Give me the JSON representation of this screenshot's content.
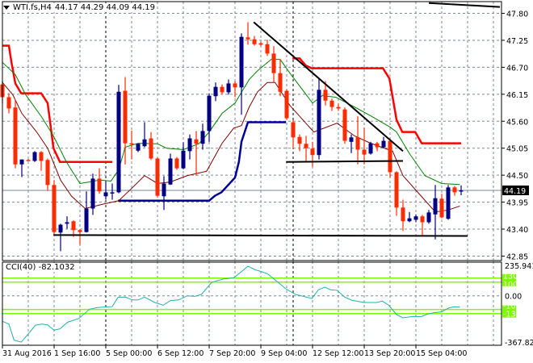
{
  "header": {
    "symbol": "WTI.fs,H4",
    "ohlc": "44.17 44.29 44.09 44.19"
  },
  "indicator": {
    "label": "CCI(40) -82.1032"
  },
  "chart_data": [
    {
      "type": "candlestick",
      "title": "WTI.fs,H4",
      "ohlc_fields": [
        "open",
        "high",
        "low",
        "close"
      ],
      "ylim": [
        42.85,
        47.8
      ],
      "y_ticks": [
        "47.80",
        "47.25",
        "46.70",
        "46.15",
        "45.60",
        "45.05",
        "44.50",
        "43.95",
        "43.40",
        "42.85"
      ],
      "current_price": "44.19",
      "x_labels": [
        {
          "index": 0,
          "label": "31 Aug 2016"
        },
        {
          "index": 8,
          "label": "1 Sep 16:00"
        },
        {
          "index": 16,
          "label": "5 Sep 00:00"
        },
        {
          "index": 24,
          "label": "6 Sep 12:00"
        },
        {
          "index": 32,
          "label": "7 Sep 20:00"
        },
        {
          "index": 40,
          "label": "9 Sep 04:00"
        },
        {
          "index": 48,
          "label": "12 Sep 12:00"
        },
        {
          "index": 56,
          "label": "13 Sep 20:00"
        },
        {
          "index": 64,
          "label": "15 Sep 04:00"
        }
      ],
      "period_separators": [
        16,
        45
      ],
      "grid": true,
      "colors": {
        "bull": "#000080",
        "bear": "#ff2a00",
        "ma_fast": "#008000",
        "ma_slow": "#800000",
        "stop_upper": "#ff0000",
        "stop_lower": "#000099",
        "trendline": "#000000",
        "grid": "#7f8a99"
      },
      "candles": [
        [
          46.35,
          46.42,
          45.97,
          46.09
        ],
        [
          46.09,
          46.17,
          45.76,
          45.86
        ],
        [
          45.88,
          46.04,
          44.64,
          44.72
        ],
        [
          44.72,
          44.82,
          44.46,
          44.82
        ],
        [
          44.81,
          44.83,
          44.79,
          44.8
        ],
        [
          44.79,
          44.99,
          44.77,
          44.97
        ],
        [
          44.97,
          44.99,
          44.59,
          44.79
        ],
        [
          44.81,
          44.84,
          44.18,
          44.3
        ],
        [
          44.3,
          44.4,
          43.27,
          43.34
        ],
        [
          43.33,
          43.51,
          42.95,
          43.49
        ],
        [
          43.51,
          43.66,
          43.41,
          43.54
        ],
        [
          43.56,
          43.58,
          43.24,
          43.38
        ],
        [
          43.38,
          43.4,
          43.08,
          43.34
        ],
        [
          43.34,
          44.17,
          43.33,
          43.82
        ],
        [
          43.82,
          44.53,
          43.69,
          44.43
        ],
        [
          44.43,
          44.64,
          44.12,
          44.17
        ],
        [
          44.07,
          44.38,
          44.0,
          44.15
        ],
        [
          44.13,
          44.33,
          44.0,
          44.15
        ],
        [
          44.15,
          46.34,
          44.13,
          46.2
        ],
        [
          46.22,
          46.5,
          44.72,
          45.15
        ],
        [
          45.15,
          45.41,
          44.82,
          45.13
        ],
        [
          45.0,
          45.14,
          44.97,
          45.14
        ],
        [
          45.09,
          45.58,
          45.07,
          45.23
        ],
        [
          45.25,
          45.38,
          44.81,
          44.84
        ],
        [
          44.84,
          44.86,
          44.05,
          44.08
        ],
        [
          44.07,
          44.48,
          43.79,
          44.33
        ],
        [
          44.31,
          44.94,
          44.3,
          44.84
        ],
        [
          44.84,
          44.87,
          44.61,
          44.64
        ],
        [
          44.64,
          45.17,
          44.62,
          45.0
        ],
        [
          44.99,
          45.33,
          44.82,
          45.25
        ],
        [
          45.23,
          45.4,
          44.49,
          45.14
        ],
        [
          45.14,
          45.55,
          45.02,
          45.4
        ],
        [
          45.4,
          46.17,
          45.18,
          46.12
        ],
        [
          46.11,
          46.39,
          46.01,
          46.3
        ],
        [
          46.3,
          46.35,
          46.14,
          46.19
        ],
        [
          46.19,
          46.45,
          46.14,
          46.37
        ],
        [
          46.37,
          46.42,
          46.09,
          46.29
        ],
        [
          46.29,
          47.39,
          45.73,
          47.32
        ],
        [
          47.31,
          47.62,
          47.16,
          47.27
        ],
        [
          47.27,
          47.34,
          47.14,
          47.17
        ],
        [
          47.19,
          47.22,
          47.13,
          47.16
        ],
        [
          47.17,
          47.26,
          46.93,
          46.98
        ],
        [
          46.98,
          47.13,
          46.39,
          46.58
        ],
        [
          46.58,
          46.86,
          46.11,
          46.2
        ],
        [
          46.22,
          46.25,
          45.63,
          45.66
        ],
        [
          45.58,
          45.62,
          45.05,
          45.27
        ],
        [
          45.28,
          45.33,
          44.99,
          45.14
        ],
        [
          45.14,
          45.3,
          44.79,
          45.05
        ],
        [
          45.04,
          45.18,
          44.67,
          44.91
        ],
        [
          44.91,
          46.48,
          44.82,
          46.24
        ],
        [
          46.24,
          46.42,
          45.92,
          46.02
        ],
        [
          46.02,
          46.06,
          45.81,
          45.89
        ],
        [
          45.89,
          45.96,
          45.81,
          45.86
        ],
        [
          45.84,
          45.88,
          45.14,
          45.2
        ],
        [
          45.18,
          45.33,
          44.95,
          45.27
        ],
        [
          45.27,
          45.7,
          44.72,
          45.02
        ],
        [
          45.02,
          45.47,
          44.72,
          44.92
        ],
        [
          44.94,
          45.18,
          44.92,
          45.15
        ],
        [
          45.15,
          45.18,
          44.99,
          45.07
        ],
        [
          45.07,
          45.28,
          45.05,
          45.2
        ],
        [
          45.2,
          45.25,
          44.45,
          44.56
        ],
        [
          44.56,
          44.58,
          43.67,
          43.84
        ],
        [
          43.84,
          44.0,
          43.36,
          43.56
        ],
        [
          43.56,
          43.75,
          43.54,
          43.62
        ],
        [
          43.59,
          43.7,
          43.54,
          43.66
        ],
        [
          43.66,
          43.69,
          43.26,
          43.54
        ],
        [
          43.54,
          43.79,
          43.51,
          43.74
        ],
        [
          43.7,
          44.3,
          43.19,
          44.03
        ],
        [
          44.02,
          44.12,
          43.62,
          43.64
        ],
        [
          43.61,
          44.3,
          43.59,
          44.25
        ],
        [
          44.25,
          44.28,
          44.08,
          44.15
        ],
        [
          44.17,
          44.29,
          44.09,
          44.19
        ]
      ],
      "ma_fast": [
        [
          0,
          46.8
        ],
        [
          2,
          46.55
        ],
        [
          3.6,
          46.14
        ],
        [
          6.1,
          45.68
        ],
        [
          7.9,
          45.3
        ],
        [
          9.9,
          44.77
        ],
        [
          12,
          44.33
        ],
        [
          13.4,
          44.36
        ],
        [
          15,
          44.4
        ],
        [
          16.8,
          44.38
        ],
        [
          18,
          44.61
        ],
        [
          19,
          45.07
        ],
        [
          21,
          45.15
        ],
        [
          24,
          45.14
        ],
        [
          25.4,
          45.05
        ],
        [
          28,
          45.02
        ],
        [
          30.4,
          45.14
        ],
        [
          32,
          45.38
        ],
        [
          34,
          45.76
        ],
        [
          36,
          45.97
        ],
        [
          38.2,
          46.45
        ],
        [
          39.5,
          46.63
        ],
        [
          41.6,
          46.86
        ],
        [
          43,
          46.86
        ],
        [
          44.5,
          46.58
        ],
        [
          48,
          45.97
        ],
        [
          49.5,
          46.12
        ],
        [
          51.6,
          46.09
        ],
        [
          54.5,
          45.89
        ],
        [
          57,
          45.71
        ],
        [
          60,
          45.48
        ],
        [
          61,
          45.38
        ],
        [
          63,
          44.94
        ],
        [
          65.4,
          44.49
        ],
        [
          68,
          44.33
        ],
        [
          70.8,
          44.31
        ]
      ],
      "ma_slow": [
        [
          0,
          46.39
        ],
        [
          1.6,
          46.14
        ],
        [
          3,
          45.76
        ],
        [
          5.3,
          45.38
        ],
        [
          7,
          45.05
        ],
        [
          9,
          44.4
        ],
        [
          10.7,
          44.07
        ],
        [
          12.8,
          43.82
        ],
        [
          15.3,
          43.9
        ],
        [
          18,
          43.98
        ],
        [
          20,
          44.23
        ],
        [
          22,
          44.49
        ],
        [
          24,
          44.33
        ],
        [
          26,
          44.36
        ],
        [
          28.6,
          44.49
        ],
        [
          31.6,
          44.58
        ],
        [
          34,
          45.15
        ],
        [
          35.8,
          45.46
        ],
        [
          37,
          45.51
        ],
        [
          38.2,
          45.89
        ],
        [
          39.5,
          46.2
        ],
        [
          41,
          46.39
        ],
        [
          42.2,
          46.39
        ],
        [
          44.5,
          45.92
        ],
        [
          48.2,
          45.38
        ],
        [
          51.8,
          45.56
        ],
        [
          54.5,
          45.3
        ],
        [
          57,
          45.15
        ],
        [
          60.4,
          44.99
        ],
        [
          62,
          44.49
        ],
        [
          64.5,
          44.12
        ],
        [
          67,
          43.75
        ],
        [
          69,
          43.79
        ],
        [
          70.8,
          43.87
        ]
      ],
      "stop_upper": [
        [
          [
            0,
            47.14
          ],
          [
            1,
            47.14
          ],
          [
            1.4,
            46.8
          ],
          [
            2,
            46.37
          ],
          [
            2.9,
            46.17
          ],
          [
            6,
            46.17
          ],
          [
            7,
            45.97
          ],
          [
            7.9,
            45.05
          ],
          [
            8.9,
            44.77
          ],
          [
            17,
            44.77
          ]
        ],
        [
          [
            44.9,
            46.88
          ],
          [
            46,
            46.88
          ],
          [
            47,
            46.73
          ],
          [
            47.9,
            46.68
          ],
          [
            58.9,
            46.68
          ],
          [
            59.9,
            46.47
          ],
          [
            61,
            45.63
          ],
          [
            61.9,
            45.38
          ],
          [
            63.9,
            45.38
          ],
          [
            64.9,
            45.15
          ],
          [
            71,
            45.15
          ]
        ]
      ],
      "stop_lower": [
        [
          [
            17.9,
            43.98
          ],
          [
            32,
            43.98
          ],
          [
            32.9,
            44.08
          ],
          [
            33.9,
            44.15
          ],
          [
            36,
            44.45
          ],
          [
            36.6,
            44.77
          ],
          [
            37,
            45.18
          ],
          [
            38,
            45.58
          ],
          [
            43.9,
            45.58
          ]
        ]
      ],
      "trendlines": [
        [
          [
            7.9,
            43.28
          ],
          [
            72,
            43.26
          ]
        ],
        [
          [
            43.9,
            44.77
          ],
          [
            62,
            44.79
          ]
        ],
        [
          [
            38.9,
            47.62
          ],
          [
            62,
            44.99
          ]
        ],
        [
          [
            66,
            48.01
          ],
          [
            77,
            47.93
          ]
        ]
      ]
    },
    {
      "type": "line",
      "title": "CCI(40) -82.1032",
      "ylim": [
        -367.825,
        235.9414
      ],
      "y_ticks": [
        "235.9414",
        "0.00",
        "-367.825"
      ],
      "levels": [
        {
          "value": 130,
          "label": "130"
        },
        {
          "value": 100,
          "label": "100"
        },
        {
          "value": -100,
          "label": "-100"
        },
        {
          "value": -130,
          "label": "-130"
        }
      ],
      "level_color": "#7cfc00",
      "line_color": "#20b2aa",
      "series": [
        [
          0,
          -187
        ],
        [
          1,
          -207
        ],
        [
          1.8,
          -325
        ],
        [
          2.9,
          -339
        ],
        [
          3.9,
          -285
        ],
        [
          5.1,
          -216
        ],
        [
          6.1,
          -207
        ],
        [
          7,
          -213
        ],
        [
          8,
          -252
        ],
        [
          8.9,
          -242
        ],
        [
          10.1,
          -193
        ],
        [
          11.8,
          -167
        ],
        [
          13.5,
          -98
        ],
        [
          14.8,
          -85
        ],
        [
          17,
          -79
        ],
        [
          17.9,
          -10
        ],
        [
          19.1,
          -10
        ],
        [
          20.1,
          -30
        ],
        [
          21,
          -30
        ],
        [
          22,
          -10
        ],
        [
          23.6,
          -49
        ],
        [
          24.9,
          -69
        ],
        [
          26,
          -35
        ],
        [
          27.3,
          -30
        ],
        [
          28.6,
          0
        ],
        [
          29.8,
          -4
        ],
        [
          30.8,
          10
        ],
        [
          32.4,
          99
        ],
        [
          34.1,
          122
        ],
        [
          35.8,
          132
        ],
        [
          37,
          177
        ],
        [
          38,
          217
        ],
        [
          39.1,
          191
        ],
        [
          40.1,
          177
        ],
        [
          41,
          162
        ],
        [
          42.4,
          109
        ],
        [
          43.9,
          50
        ],
        [
          45.4,
          10
        ],
        [
          47.9,
          -20
        ],
        [
          48.9,
          44
        ],
        [
          49.9,
          63
        ],
        [
          50.8,
          44
        ],
        [
          51.8,
          40
        ],
        [
          53,
          -10
        ],
        [
          54.1,
          -33
        ],
        [
          56,
          -49
        ],
        [
          57.9,
          -49
        ],
        [
          58.8,
          -39
        ],
        [
          59.8,
          -69
        ],
        [
          61,
          -138
        ],
        [
          62,
          -161
        ],
        [
          63.6,
          -151
        ],
        [
          64.8,
          -153
        ],
        [
          65.8,
          -134
        ],
        [
          66.8,
          -124
        ],
        [
          67.9,
          -118
        ],
        [
          69.1,
          -89
        ],
        [
          69.9,
          -80
        ],
        [
          70.8,
          -82
        ]
      ]
    }
  ]
}
